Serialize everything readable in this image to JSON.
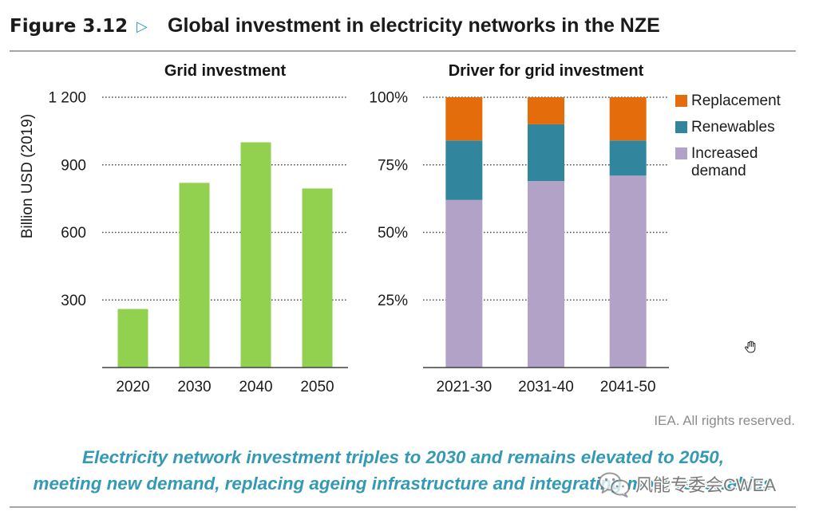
{
  "header": {
    "figure_label": "Figure 3.12",
    "marker": "▷",
    "title": "Global investment in electricity networks in the NZE"
  },
  "chart_data": [
    {
      "type": "bar",
      "title": "Grid investment",
      "xlabel": "",
      "ylabel": "Billion USD (2019)",
      "categories": [
        "2020",
        "2030",
        "2040",
        "2050"
      ],
      "values": [
        260,
        820,
        1000,
        795
      ],
      "ylim": [
        0,
        1200
      ],
      "yticks": [
        300,
        600,
        900,
        1200
      ],
      "ytick_labels": [
        "300",
        "600",
        "900",
        "1 200"
      ],
      "grid": true,
      "color": "#92D050"
    },
    {
      "type": "bar",
      "stacked": true,
      "title": "Driver for grid investment",
      "xlabel": "",
      "ylabel": "",
      "categories": [
        "2021-30",
        "2031-40",
        "2041-50"
      ],
      "series": [
        {
          "name": "Increased demand",
          "values": [
            62,
            69,
            71
          ],
          "color": "#B3A2C7"
        },
        {
          "name": "Renewables",
          "values": [
            22,
            21,
            13
          ],
          "color": "#31859C"
        },
        {
          "name": "Replacement",
          "values": [
            16,
            10,
            16
          ],
          "color": "#E46C0A"
        }
      ],
      "ylim": [
        0,
        100
      ],
      "yticks": [
        25,
        50,
        75,
        100
      ],
      "ytick_labels": [
        "25%",
        "50%",
        "75%",
        "100%"
      ],
      "grid": true,
      "legend": "right"
    }
  ],
  "credit": "IEA. All rights reserved.",
  "caption": {
    "line1": "Electricity network investment triples to 2030 and remains elevated to 2050,",
    "line2": "meeting new demand, replacing ageing infrastructure and integrating more renewables"
  },
  "watermark": {
    "text": "风能专委会CWEA",
    "icon": "wechat-icon"
  },
  "cursor": {
    "icon": "hand-cursor-icon"
  },
  "colors": {
    "accent": "#3399B4",
    "rule": "#A6A6A6"
  }
}
